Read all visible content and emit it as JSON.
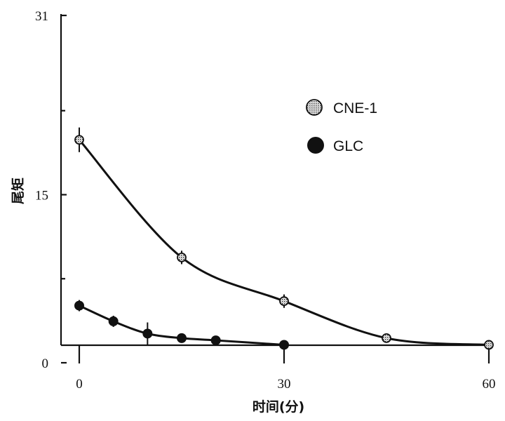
{
  "chart_data": {
    "type": "scatter",
    "xlabel": "时间(分)",
    "ylabel": "尾矩",
    "xlim": [
      0,
      60
    ],
    "ylim": [
      0,
      31
    ],
    "xticks": [
      0,
      30,
      60
    ],
    "yticks": [
      0,
      15,
      31
    ],
    "grid": false,
    "legend_position": "top-right",
    "series": [
      {
        "name": "CNE-1",
        "marker": "stippled-circle",
        "color": "#777777",
        "points": [
          {
            "x": 0,
            "y": 19.9,
            "err": 1.1
          },
          {
            "x": 15,
            "y": 9.4,
            "err": 0.6
          },
          {
            "x": 30,
            "y": 5.5,
            "err": 0.6
          },
          {
            "x": 45,
            "y": 2.2,
            "err": 0
          },
          {
            "x": 60,
            "y": 1.6,
            "err": 0
          }
        ]
      },
      {
        "name": "GLC",
        "marker": "filled-circle",
        "color": "#111111",
        "points": [
          {
            "x": 0,
            "y": 5.1,
            "err": 0.5
          },
          {
            "x": 5,
            "y": 3.7,
            "err": 0.5
          },
          {
            "x": 10,
            "y": 2.6,
            "err": 1.0
          },
          {
            "x": 15,
            "y": 2.2,
            "err": 0.3
          },
          {
            "x": 20,
            "y": 2.0,
            "err": 0
          },
          {
            "x": 30,
            "y": 1.6,
            "err": 0
          }
        ]
      }
    ]
  }
}
